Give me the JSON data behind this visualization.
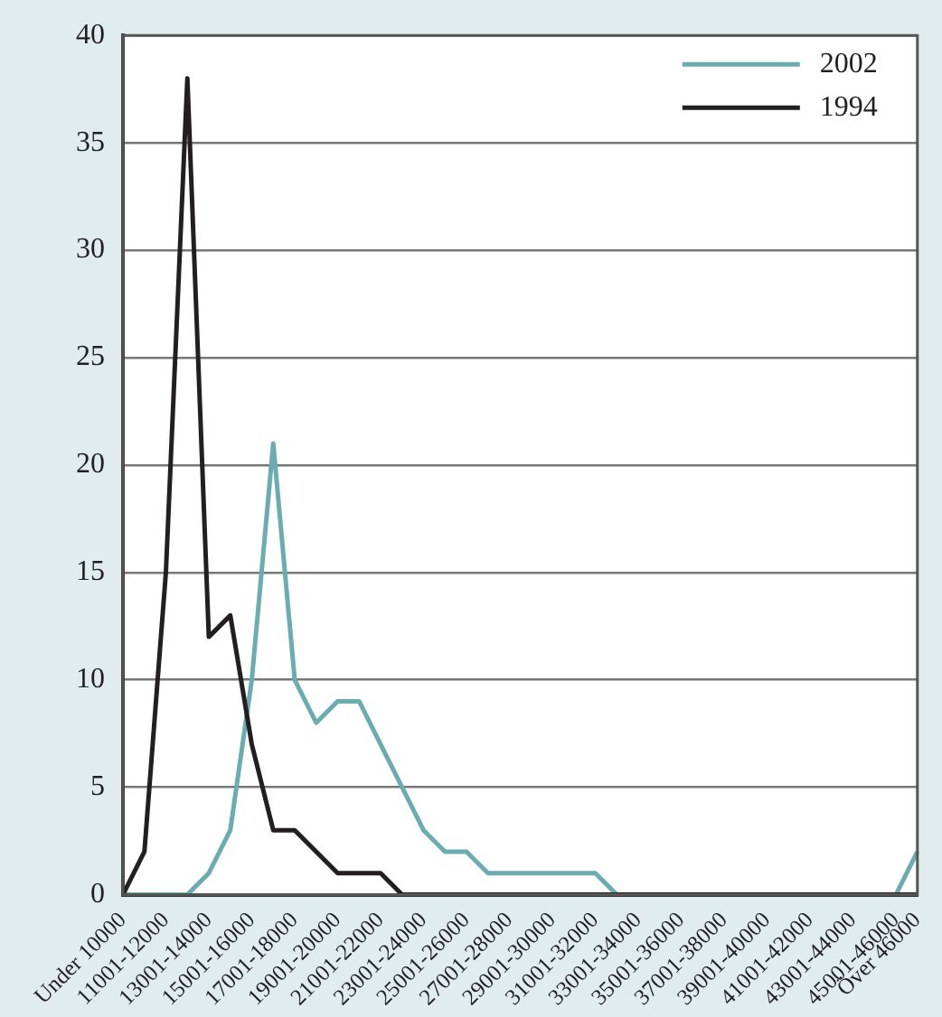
{
  "chart_data": {
    "type": "line",
    "categories": [
      "Under 10000",
      null,
      "11001-12000",
      null,
      "13001-14000",
      null,
      "15001-16000",
      null,
      "17001-18000",
      null,
      "19001-20000",
      null,
      "21001-22000",
      null,
      "23001-24000",
      null,
      "25001-26000",
      null,
      "27001-28000",
      null,
      "29001-30000",
      null,
      "31001-32000",
      null,
      "33001-34000",
      null,
      "35001-36000",
      null,
      "37001-38000",
      null,
      "39001-40000",
      null,
      "41001-42000",
      null,
      "43001-44000",
      null,
      "45001-46000",
      "Över 46000"
    ],
    "series": [
      {
        "name": "2002",
        "color": "#6aacb0",
        "values": [
          0,
          0,
          0,
          0,
          1,
          3,
          10,
          21,
          10,
          8,
          9,
          9,
          7,
          5,
          3,
          2,
          2,
          1,
          1,
          1,
          1,
          1,
          1,
          0,
          0,
          0,
          0,
          0,
          0,
          0,
          0,
          0,
          0,
          0,
          0,
          0,
          0,
          2
        ]
      },
      {
        "name": "1994",
        "color": "#231f20",
        "values": [
          0,
          2,
          15,
          38,
          12,
          13,
          7,
          3,
          3,
          2,
          1,
          1,
          1,
          0,
          0,
          0,
          0,
          0,
          0,
          0,
          0,
          0,
          0,
          0,
          0,
          0,
          0,
          0,
          0,
          0,
          0,
          0,
          0,
          0,
          0,
          0,
          0,
          0
        ]
      }
    ],
    "ylim": [
      0,
      40
    ],
    "yticks": [
      0,
      5,
      10,
      15,
      20,
      25,
      30,
      35,
      40
    ],
    "grid": "y",
    "legend": "top right",
    "marker": "none",
    "line_style": "solid"
  }
}
